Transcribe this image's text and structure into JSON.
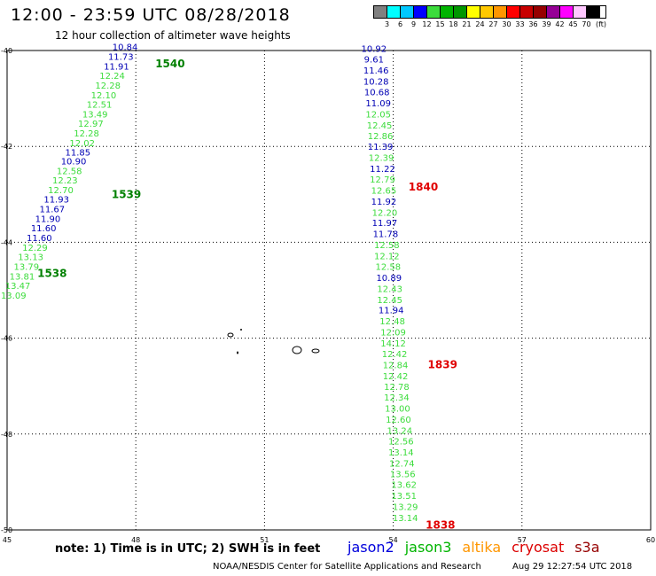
{
  "header": {
    "title": "12:00 - 23:59 UTC 08/28/2018",
    "subtitle": "12 hour collection of altimeter wave heights"
  },
  "legend": {
    "colors": [
      "#808080",
      "#00ffff",
      "#00c8ff",
      "#0000ff",
      "#3cdc3c",
      "#00b400",
      "#009600",
      "#ffff00",
      "#ffc800",
      "#ff9600",
      "#ff0000",
      "#c80000",
      "#960000",
      "#960096",
      "#ff00ff",
      "#ffc8ff",
      "#000000"
    ],
    "labels": [
      "3",
      "6",
      "9",
      "12",
      "15",
      "18",
      "21",
      "24",
      "27",
      "30",
      "33",
      "36",
      "39",
      "42",
      "45",
      "70"
    ],
    "unit": "(ft)"
  },
  "axes": {
    "lat_labels": [
      "-40",
      "-42",
      "-44",
      "-46",
      "-48",
      "-50"
    ],
    "lon_labels": [
      "45",
      "48",
      "51",
      "54",
      "57",
      "60"
    ]
  },
  "tracks": [
    {
      "time_label": "1540",
      "label_color": "#008000",
      "label_lat": -40.28,
      "label_lon": 48.8,
      "points": [
        {
          "v": "10.84",
          "c": "#0000b4",
          "lat": -39.92,
          "lon": 47.75
        },
        {
          "v": "11.73",
          "c": "#0000b4",
          "lat": -40.12,
          "lon": 47.65
        },
        {
          "v": "11.91",
          "c": "#0000b4",
          "lat": -40.32,
          "lon": 47.55
        },
        {
          "v": "12.24",
          "c": "#3cdc3c",
          "lat": -40.52,
          "lon": 47.45
        },
        {
          "v": "12.28",
          "c": "#3cdc3c",
          "lat": -40.72,
          "lon": 47.35
        },
        {
          "v": "12.10",
          "c": "#3cdc3c",
          "lat": -40.92,
          "lon": 47.25
        },
        {
          "v": "12.51",
          "c": "#3cdc3c",
          "lat": -41.12,
          "lon": 47.15
        },
        {
          "v": "13.49",
          "c": "#3cdc3c",
          "lat": -41.32,
          "lon": 47.05
        },
        {
          "v": "12.97",
          "c": "#3cdc3c",
          "lat": -41.52,
          "lon": 46.95
        },
        {
          "v": "12.28",
          "c": "#3cdc3c",
          "lat": -41.72,
          "lon": 46.85
        },
        {
          "v": "12.02",
          "c": "#3cdc3c",
          "lat": -41.92,
          "lon": 46.75
        },
        {
          "v": "11.85",
          "c": "#0000b4",
          "lat": -42.12,
          "lon": 46.65
        }
      ]
    },
    {
      "time_label": "1539",
      "label_color": "#008000",
      "label_lat": -43.0,
      "label_lon": 47.78,
      "points": [
        {
          "v": "10.90",
          "c": "#0000b4",
          "lat": -42.3,
          "lon": 46.55
        },
        {
          "v": "12.58",
          "c": "#3cdc3c",
          "lat": -42.5,
          "lon": 46.45
        },
        {
          "v": "12.23",
          "c": "#3cdc3c",
          "lat": -42.7,
          "lon": 46.35
        },
        {
          "v": "12.70",
          "c": "#3cdc3c",
          "lat": -42.9,
          "lon": 46.25
        },
        {
          "v": "11.93",
          "c": "#0000b4",
          "lat": -43.1,
          "lon": 46.15
        },
        {
          "v": "11.67",
          "c": "#0000b4",
          "lat": -43.3,
          "lon": 46.05
        },
        {
          "v": "11.90",
          "c": "#0000b4",
          "lat": -43.5,
          "lon": 45.95
        },
        {
          "v": "11.60",
          "c": "#0000b4",
          "lat": -43.7,
          "lon": 45.85
        },
        {
          "v": "11.60",
          "c": "#0000b4",
          "lat": -43.9,
          "lon": 45.75
        }
      ]
    },
    {
      "time_label": "1538",
      "label_color": "#008000",
      "label_lat": -44.65,
      "label_lon": 46.05,
      "points": [
        {
          "v": "12.29",
          "c": "#3cdc3c",
          "lat": -44.1,
          "lon": 45.65
        },
        {
          "v": "13.13",
          "c": "#3cdc3c",
          "lat": -44.3,
          "lon": 45.55
        },
        {
          "v": "13.79",
          "c": "#3cdc3c",
          "lat": -44.5,
          "lon": 45.45
        },
        {
          "v": "13.81",
          "c": "#3cdc3c",
          "lat": -44.7,
          "lon": 45.35
        },
        {
          "v": "13.47",
          "c": "#3cdc3c",
          "lat": -44.9,
          "lon": 45.25
        },
        {
          "v": "13.09",
          "c": "#3cdc3c",
          "lat": -45.1,
          "lon": 45.15
        }
      ]
    },
    {
      "time_label": "1840",
      "label_color": "#e00000",
      "label_lat": -42.85,
      "label_lon": 54.7,
      "points": [
        {
          "v": "10.92",
          "c": "#0000b4",
          "lat": -39.95,
          "lon": 53.55
        },
        {
          "v": "9.61",
          "c": "#0000b4",
          "lat": -40.18,
          "lon": 53.55
        },
        {
          "v": "11.46",
          "c": "#0000b4",
          "lat": -40.41,
          "lon": 53.6
        },
        {
          "v": "10.28",
          "c": "#0000b4",
          "lat": -40.64,
          "lon": 53.6
        },
        {
          "v": "10.68",
          "c": "#0000b4",
          "lat": -40.86,
          "lon": 53.62
        },
        {
          "v": "11.09",
          "c": "#0000b4",
          "lat": -41.09,
          "lon": 53.65
        },
        {
          "v": "12.05",
          "c": "#3cdc3c",
          "lat": -41.32,
          "lon": 53.65
        },
        {
          "v": "12.45",
          "c": "#3cdc3c",
          "lat": -41.55,
          "lon": 53.68
        },
        {
          "v": "12.86",
          "c": "#3cdc3c",
          "lat": -41.77,
          "lon": 53.7
        },
        {
          "v": "11.39",
          "c": "#0000b4",
          "lat": -42.0,
          "lon": 53.7
        },
        {
          "v": "12.39",
          "c": "#3cdc3c",
          "lat": -42.23,
          "lon": 53.72
        },
        {
          "v": "11.22",
          "c": "#0000b4",
          "lat": -42.46,
          "lon": 53.75
        },
        {
          "v": "12.79",
          "c": "#3cdc3c",
          "lat": -42.68,
          "lon": 53.75
        },
        {
          "v": "12.65",
          "c": "#3cdc3c",
          "lat": -42.91,
          "lon": 53.78
        },
        {
          "v": "11.92",
          "c": "#0000b4",
          "lat": -43.14,
          "lon": 53.78
        },
        {
          "v": "12.20",
          "c": "#3cdc3c",
          "lat": -43.37,
          "lon": 53.8
        },
        {
          "v": "11.97",
          "c": "#0000b4",
          "lat": -43.59,
          "lon": 53.8
        },
        {
          "v": "11.78",
          "c": "#0000b4",
          "lat": -43.82,
          "lon": 53.82
        }
      ]
    },
    {
      "time_label": "1839",
      "label_color": "#e00000",
      "label_lat": -46.55,
      "label_lon": 55.15,
      "points": [
        {
          "v": "12.58",
          "c": "#3cdc3c",
          "lat": -44.05,
          "lon": 53.85
        },
        {
          "v": "12.12",
          "c": "#3cdc3c",
          "lat": -44.28,
          "lon": 53.85
        },
        {
          "v": "12.58",
          "c": "#3cdc3c",
          "lat": -44.5,
          "lon": 53.88
        },
        {
          "v": "10.89",
          "c": "#0000b4",
          "lat": -44.73,
          "lon": 53.9
        },
        {
          "v": "12.43",
          "c": "#3cdc3c",
          "lat": -44.96,
          "lon": 53.92
        },
        {
          "v": "12.45",
          "c": "#3cdc3c",
          "lat": -45.19,
          "lon": 53.92
        },
        {
          "v": "11.94",
          "c": "#0000b4",
          "lat": -45.41,
          "lon": 53.95
        },
        {
          "v": "12.48",
          "c": "#3cdc3c",
          "lat": -45.64,
          "lon": 53.98
        },
        {
          "v": "12.09",
          "c": "#3cdc3c",
          "lat": -45.87,
          "lon": 54.0
        },
        {
          "v": "14.12",
          "c": "#3cdc3c",
          "lat": -46.1,
          "lon": 54.0
        },
        {
          "v": "12.42",
          "c": "#3cdc3c",
          "lat": -46.32,
          "lon": 54.03
        },
        {
          "v": "12.84",
          "c": "#3cdc3c",
          "lat": -46.55,
          "lon": 54.05
        },
        {
          "v": "12.42",
          "c": "#3cdc3c",
          "lat": -46.78,
          "lon": 54.05
        },
        {
          "v": "12.78",
          "c": "#3cdc3c",
          "lat": -47.01,
          "lon": 54.08
        },
        {
          "v": "12.34",
          "c": "#3cdc3c",
          "lat": -47.23,
          "lon": 54.08
        },
        {
          "v": "13.00",
          "c": "#3cdc3c",
          "lat": -47.46,
          "lon": 54.1
        },
        {
          "v": "12.60",
          "c": "#3cdc3c",
          "lat": -47.69,
          "lon": 54.12
        }
      ]
    },
    {
      "time_label": "1838",
      "label_color": "#e00000",
      "label_lat": -49.9,
      "label_lon": 55.1,
      "points": [
        {
          "v": "13.24",
          "c": "#3cdc3c",
          "lat": -47.92,
          "lon": 54.15
        },
        {
          "v": "12.56",
          "c": "#3cdc3c",
          "lat": -48.14,
          "lon": 54.18
        },
        {
          "v": "13.14",
          "c": "#3cdc3c",
          "lat": -48.37,
          "lon": 54.18
        },
        {
          "v": "12.74",
          "c": "#3cdc3c",
          "lat": -48.6,
          "lon": 54.2
        },
        {
          "v": "13.56",
          "c": "#3cdc3c",
          "lat": -48.83,
          "lon": 54.22
        },
        {
          "v": "13.62",
          "c": "#3cdc3c",
          "lat": -49.05,
          "lon": 54.25
        },
        {
          "v": "13.51",
          "c": "#3cdc3c",
          "lat": -49.28,
          "lon": 54.25
        },
        {
          "v": "13.29",
          "c": "#3cdc3c",
          "lat": -49.51,
          "lon": 54.28
        },
        {
          "v": "13.14",
          "c": "#3cdc3c",
          "lat": -49.74,
          "lon": 54.28
        }
      ]
    }
  ],
  "note": "note:  1) Time is in UTC;  2) SWH is in feet",
  "satellites": [
    {
      "name": "jason2",
      "color": "#0000dc"
    },
    {
      "name": "jason3",
      "color": "#00b400"
    },
    {
      "name": "altika",
      "color": "#ff9600"
    },
    {
      "name": "cryosat",
      "color": "#dc0000"
    },
    {
      "name": "s3a",
      "color": "#960000"
    }
  ],
  "footer": {
    "credit": "NOAA/NESDIS Center for Satellite Applications and Research",
    "timestamp": "Aug 29 12:27:54 UTC 2018"
  }
}
